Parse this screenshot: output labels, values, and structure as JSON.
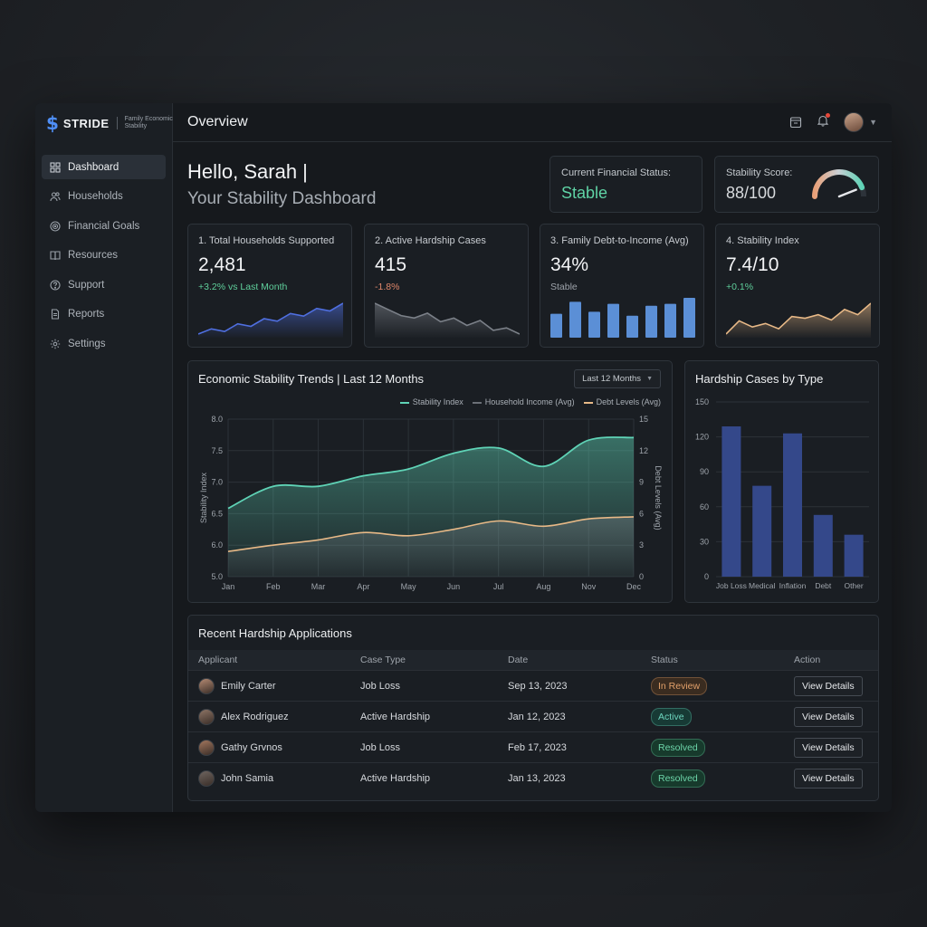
{
  "brand": {
    "icon": "$",
    "name": "STRIDE",
    "tagline": "Family Economic Stability"
  },
  "nav": [
    {
      "label": "Dashboard",
      "icon": "grid-icon",
      "active": true
    },
    {
      "label": "Households",
      "icon": "users-icon"
    },
    {
      "label": "Financial Goals",
      "icon": "target-icon"
    },
    {
      "label": "Resources",
      "icon": "book-icon"
    },
    {
      "label": "Support",
      "icon": "help-icon"
    },
    {
      "label": "Reports",
      "icon": "document-icon"
    },
    {
      "label": "Settings",
      "icon": "gear-icon"
    }
  ],
  "header": {
    "title": "Overview"
  },
  "greeting": {
    "line1": "Hello, Sarah |",
    "line2": "Your Stability Dashboard"
  },
  "status": {
    "financial_label": "Current Financial Status:",
    "financial_value": "Stable",
    "score_label": "Stability Score:",
    "score_value": "88/100",
    "score_level": 0.88
  },
  "kpis": [
    {
      "title": "1. Total Households Supported",
      "value": "2,481",
      "delta": "+3.2% vs Last Month",
      "delta_color": "#5fcf9b",
      "spark": [
        3,
        4,
        3.5,
        5,
        4.5,
        6,
        5.5,
        7,
        6.5,
        8,
        7.5,
        9
      ]
    },
    {
      "title": "2. Active Hardship Cases",
      "value": "415",
      "delta": "-1.8%",
      "delta_color": "#e0876a",
      "spark": [
        8,
        7.5,
        7,
        6.8,
        7.2,
        6.5,
        6.8,
        6.2,
        6.6,
        5.8,
        6.0,
        5.5
      ]
    },
    {
      "title": "3. Family Debt-to-Income (Avg)",
      "value": "34%",
      "delta": "Stable",
      "delta_color": "#9ea4ab",
      "bars": [
        6,
        9,
        6.5,
        8.5,
        5.5,
        8,
        8.5,
        10
      ]
    },
    {
      "title": "4. Stability Index",
      "value": "7.4/10",
      "delta": "+0.1%",
      "delta_color": "#5fcf9b",
      "spark": [
        3,
        4.5,
        3.8,
        4.2,
        3.6,
        5,
        4.8,
        5.2,
        4.6,
        5.8,
        5.2,
        6.5
      ]
    }
  ],
  "trends": {
    "title": "Economic Stability Trends | Last 12 Months",
    "range": "Last 12 Months",
    "legend": [
      "Stability Index",
      "Household Income (Avg)",
      "Debt Levels (Avg)"
    ],
    "colors": {
      "stability": "#5fd3b6",
      "income": "#6b7077",
      "debt": "#e8b987"
    }
  },
  "hardship": {
    "title": "Hardship Cases by Type"
  },
  "chart_data": [
    {
      "type": "area",
      "title": "Economic Stability Trends | Last 12 Months",
      "x": [
        "Jan",
        "Feb",
        "Mar",
        "Apr",
        "May",
        "Jun",
        "Jul",
        "Aug",
        "Nov",
        "Dec"
      ],
      "ylabel": "Stability Index",
      "y2label": "Debt Levels (Avg)",
      "ylim": [
        5.0,
        8.0
      ],
      "y2lim": [
        0,
        15
      ],
      "yticks": [
        "8.0",
        "7.5",
        "7.0",
        "6.5",
        "6.0",
        "5.0"
      ],
      "y2ticks": [
        "15",
        "12",
        "9",
        "6",
        "3",
        "0"
      ],
      "series": [
        {
          "name": "Stability Index",
          "axis": "left",
          "values": [
            6.3,
            6.72,
            6.72,
            6.92,
            7.05,
            7.35,
            7.45,
            7.1,
            7.6,
            7.65
          ]
        },
        {
          "name": "Debt Levels (Avg)",
          "axis": "right",
          "values": [
            2.4,
            3.0,
            3.5,
            4.2,
            3.9,
            4.5,
            5.3,
            4.8,
            5.5,
            5.7
          ]
        }
      ],
      "grid": true,
      "legend": "top-right"
    },
    {
      "type": "bar",
      "title": "Hardship Cases by Type",
      "categories": [
        "Job Loss",
        "Medical",
        "Inflation",
        "Debt",
        "Other"
      ],
      "values": [
        129,
        78,
        123,
        53,
        36
      ],
      "yticks": [
        "150",
        "120",
        "90",
        "60",
        "30",
        "0"
      ],
      "ylim": [
        0,
        150
      ],
      "grid": true
    }
  ],
  "applications": {
    "title": "Recent Hardship Applications",
    "columns": [
      "Applicant",
      "Case Type",
      "Date",
      "Status",
      "Action"
    ],
    "rows": [
      {
        "name": "Emily Carter",
        "type": "Job Loss",
        "date": "Sep 13, 2023",
        "status": "In Review",
        "status_color": "#e2a06a",
        "status_bg": "#3a2c20",
        "action": "View Details",
        "avatar": "#b48a73"
      },
      {
        "name": "Alex Rodriguez",
        "type": "Active Hardship",
        "date": "Jan 12, 2023",
        "status": "Active",
        "status_color": "#6cd4bd",
        "status_bg": "#173a35",
        "action": "View Details",
        "avatar": "#8e7566"
      },
      {
        "name": "Gathy Grvnos",
        "type": "Job Loss",
        "date": "Feb 17, 2023",
        "status": "Resolved",
        "status_color": "#6cd4a8",
        "status_bg": "#173a2c",
        "action": "View Details",
        "avatar": "#a3775e"
      },
      {
        "name": "John Samia",
        "type": "Active Hardship",
        "date": "Jan 13, 2023",
        "status": "Resolved",
        "status_color": "#6cd4a8",
        "status_bg": "#173a2c",
        "action": "View Details",
        "avatar": "#6e6560"
      }
    ]
  }
}
